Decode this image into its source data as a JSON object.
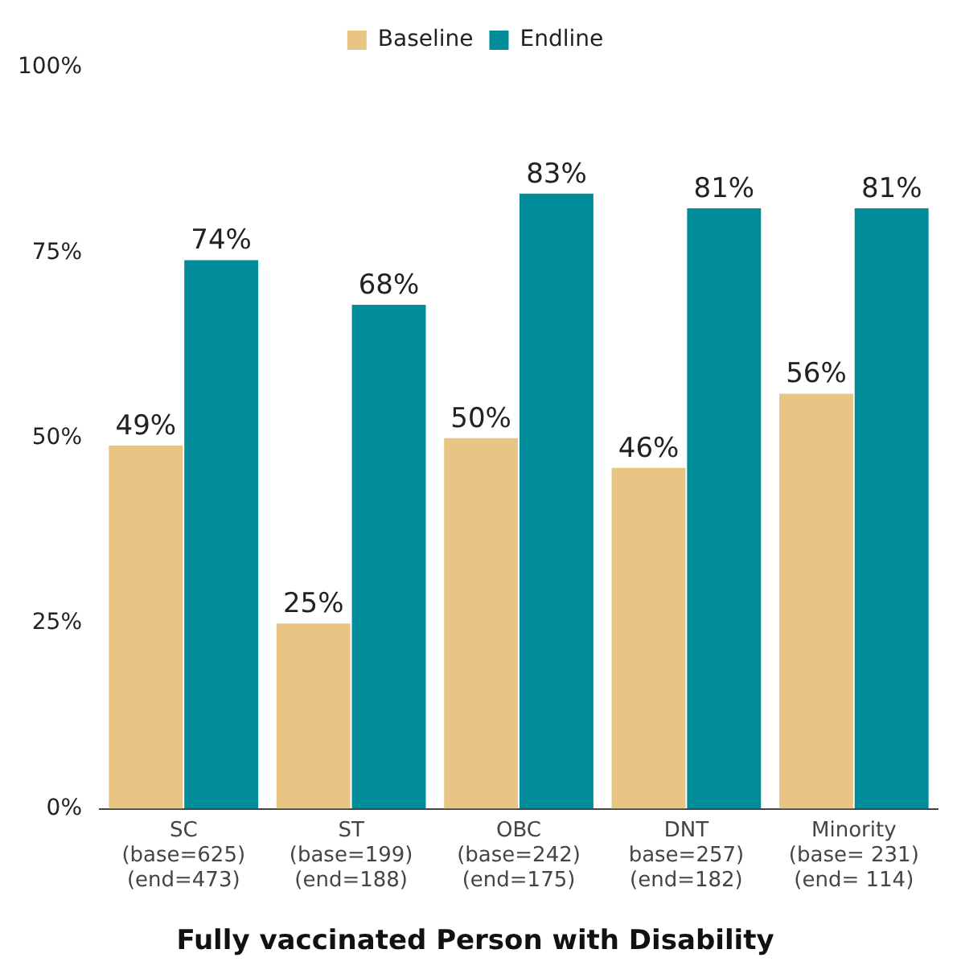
{
  "chart_data": {
    "type": "bar",
    "title": "Fully vaccinated Person with Disability",
    "categories": [
      "SC\n(base=625)\n(end=473)",
      "ST\n(base=199)\n(end=188)",
      "OBC\n(base=242)\n(end=175)",
      "DNT\nbase=257)\n(end=182)",
      "Minority\n(base= 231)\n(end= 114)"
    ],
    "series": [
      {
        "name": "Baseline",
        "color": "#e8c584",
        "values": [
          49,
          25,
          50,
          46,
          56
        ]
      },
      {
        "name": "Endline",
        "color": "#008c99",
        "values": [
          74,
          68,
          83,
          81,
          81
        ]
      }
    ],
    "ylim": [
      0,
      100
    ],
    "yticks": [
      {
        "value": 0,
        "label": "0%"
      },
      {
        "value": 25,
        "label": "25%"
      },
      {
        "value": 50,
        "label": "50%"
      },
      {
        "value": 75,
        "label": "75%"
      },
      {
        "value": 100,
        "label": "100%"
      }
    ],
    "value_labels": [
      [
        "49%",
        "25%",
        "50%",
        "46%",
        "56%"
      ],
      [
        "74%",
        "68%",
        "83%",
        "81%",
        "81%"
      ]
    ],
    "grid": false,
    "legend": "top"
  }
}
